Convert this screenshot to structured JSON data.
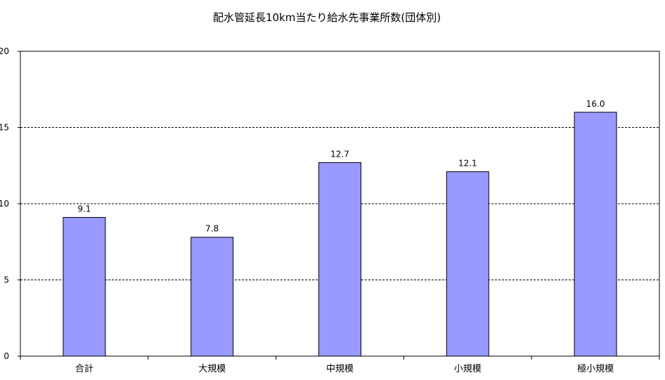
{
  "chart_data": {
    "type": "bar",
    "title": "配水管延長10km当たり給水先事業所数(団体別)",
    "categories": [
      "合計",
      "大規模",
      "中規模",
      "小規模",
      "極小規模"
    ],
    "values": [
      9.1,
      7.8,
      12.7,
      12.1,
      16.0
    ],
    "data_labels": [
      "9.1",
      "7.8",
      "12.7",
      "12.1",
      "16.0"
    ],
    "ylim": [
      0,
      20
    ],
    "yticks": [
      0,
      5,
      10,
      15,
      20
    ],
    "ytick_labels": [
      "0",
      "5",
      "10",
      "15",
      "20"
    ],
    "grid": true,
    "legend": "none",
    "bar_color": "#9999ff",
    "bar_edge_color": "#000000"
  }
}
